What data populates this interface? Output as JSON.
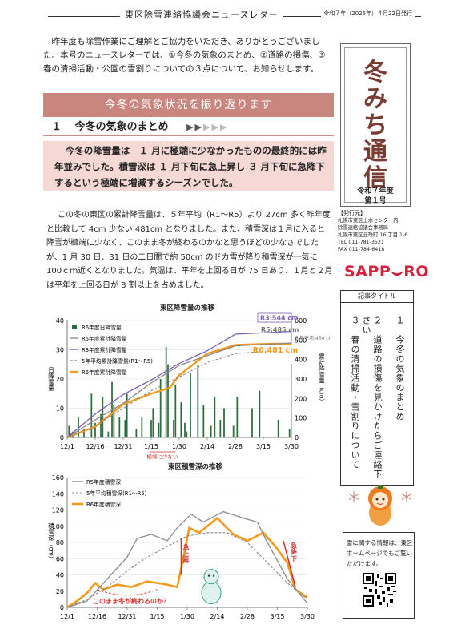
{
  "header": {
    "title": "東区除雪連絡協議会ニュースレター",
    "date": "令和７年（2025年）４月22日発行"
  },
  "intro": "昨年度も除雪作業にご理解とご協力をいただき、ありがとうございました。本号のニュースレターでは、①今冬の気象のまとめ、②道路の損傷、③春の清掃活動・公園の雪割りについての３点について、お知らせします。",
  "section": {
    "banner": "今冬の気象状況を振り返ります",
    "heading_num": "１",
    "heading": "今冬の気象のまとめ",
    "highlight": "今冬の降雪量は　１ 月に極端に少なかったものの最終的には昨年並みでした。積雪深は １ 月下旬に急上昇し ３ 月下旬に急降下するという極端に増減するシーズンでした。",
    "body": "この冬の東区の累計降雪量は、５年平均（R1～R5）より 27cm 多く昨年度と比較して 4cm 少ない 481cm となりました。また、積雪深は１月に入ると降雪が極端に少なく、このまま冬が終わるのかなと思うほどの少なさでしたが、1 月 30 日、31 日の二日間で約 50cm のドカ雪が降り積雪深が一気に 100ｃｍ近くとなりました。気温は、平年を上回る日が 75 日あり、１月と２月は平年を上回る日が 8 割以上を占めました。"
  },
  "sidebar": {
    "title_chars": [
      "冬",
      "み",
      "ち",
      "通",
      "信"
    ],
    "edition_year": "令和７年度",
    "edition_num": "第１号",
    "publisher_head": "【発行元】",
    "publisher_lines": [
      "札幌市東区土木センター内",
      "除雪連絡協議会事務局",
      "札幌市東区丘珠町 16 丁目 1-6",
      "TEL 011-781-3521",
      "FAX 011-784-6418"
    ],
    "city_logo": "SAPP_RO",
    "toc_label": "記事タイトル",
    "toc_items": [
      "１　今冬の気象のまとめ",
      "２　道路の損傷を見かけたらご連絡下さい",
      "３　春の清掃活動・雪割りについて"
    ],
    "info_text": "雪に関する情報は、東区ホームページでもご覧いただけます。"
  },
  "colors": {
    "accent_banner": "#c9867f",
    "highlight_bg": "#f6d8d4",
    "r6": "#f39a1d",
    "r5": "#8a8a8a",
    "r3": "#7b5fb5",
    "bars": "#2e6b3e",
    "callout_red": "#d22f2f",
    "title_brown": "#7a3b33"
  },
  "chart_data": [
    {
      "type": "bar",
      "title": "東区降雪量の推移",
      "x_ticks": [
        "12/1",
        "12/16",
        "12/31",
        "1/15",
        "1/30",
        "2/14",
        "2/28",
        "3/15",
        "3/30"
      ],
      "ylabel_left": "日降雪量",
      "ylabel_right": "累計降雪量（cm）",
      "ylim_left": [
        0,
        40
      ],
      "ylim_right": [
        0,
        600
      ],
      "y_ticks_left": [
        0,
        10,
        20,
        30,
        40
      ],
      "y_ticks_right": [
        0,
        100,
        200,
        300,
        400,
        500,
        600
      ],
      "legend": [
        "R6年度日降雪量",
        "R5年度累計降雪量",
        "R3年度累計降雪量",
        "5年平均累計降雪量(R1～R5)",
        "R6年度累計降雪量"
      ],
      "annotations": {
        "r3": "R3:544 cm",
        "r5": "R5:485 cm",
        "avg": "５年平均:454 cm",
        "r6": "R6:481 cm",
        "low": "極端に少ない"
      },
      "daily": [
        0,
        4,
        0,
        2,
        0,
        0,
        7,
        0,
        0,
        3,
        0,
        0,
        0,
        15,
        0,
        5,
        0,
        0,
        8,
        14,
        0,
        0,
        2,
        0,
        19,
        11,
        0,
        0,
        7,
        0,
        0,
        6,
        15,
        0,
        0,
        0,
        0,
        3,
        0,
        0,
        7,
        0,
        0,
        0,
        0,
        6,
        10,
        0,
        0,
        5,
        20,
        0,
        0,
        31,
        25,
        0,
        0,
        6,
        18,
        0,
        0,
        12,
        0,
        5,
        2,
        0,
        22,
        0,
        0,
        0,
        25,
        0,
        0,
        11,
        0,
        0,
        0,
        4,
        0,
        14,
        0,
        0,
        6,
        0,
        10,
        0,
        0,
        0,
        0,
        4,
        0,
        14,
        0,
        0,
        0,
        0,
        0,
        0,
        0,
        10,
        0,
        0,
        0,
        16,
        0,
        0,
        0,
        0,
        0,
        0,
        0,
        0,
        0,
        6,
        0,
        0,
        0,
        0,
        0,
        3
      ],
      "series": [
        {
          "name": "R6年度累計降雪量",
          "values": [
            [
              0,
              0
            ],
            [
              15,
              55
            ],
            [
              30,
              170
            ],
            [
              45,
              225
            ],
            [
              55,
              255
            ],
            [
              60,
              320
            ],
            [
              75,
              430
            ],
            [
              90,
              475
            ],
            [
              110,
              481
            ],
            [
              120,
              481
            ]
          ]
        },
        {
          "name": "R5年度累計降雪量",
          "values": [
            [
              0,
              0
            ],
            [
              15,
              90
            ],
            [
              30,
              175
            ],
            [
              45,
              280
            ],
            [
              60,
              370
            ],
            [
              75,
              420
            ],
            [
              90,
              470
            ],
            [
              120,
              485
            ]
          ]
        },
        {
          "name": "R3年度累計降雪量",
          "values": [
            [
              0,
              0
            ],
            [
              15,
              120
            ],
            [
              30,
              220
            ],
            [
              45,
              295
            ],
            [
              60,
              380
            ],
            [
              75,
              445
            ],
            [
              90,
              530
            ],
            [
              120,
              544
            ]
          ]
        },
        {
          "name": "5年平均累計降雪量(R1～R5)",
          "values": [
            [
              0,
              0
            ],
            [
              15,
              60
            ],
            [
              30,
              150
            ],
            [
              45,
              240
            ],
            [
              60,
              310
            ],
            [
              75,
              385
            ],
            [
              90,
              430
            ],
            [
              120,
              454
            ]
          ]
        }
      ]
    },
    {
      "type": "line",
      "title": "東区積雪深の推移",
      "x_ticks": [
        "12/1",
        "12/16",
        "12/31",
        "1/15",
        "1/30",
        "2/14",
        "2/28",
        "3/15",
        "3/30"
      ],
      "ylabel": "積雪深（cm）",
      "ylim": [
        0,
        160
      ],
      "y_ticks": [
        0,
        20,
        40,
        60,
        80,
        100,
        120,
        140,
        160
      ],
      "legend": [
        "R5年度積雪深",
        "5年平均積雪深(R1～R5)",
        "R6年度積雪深"
      ],
      "annotations": {
        "surge": "急上昇",
        "drop": "急降下",
        "question": "このまま冬が終わるのか？"
      },
      "series": [
        {
          "name": "R6年度積雪深",
          "values": [
            [
              0,
              0
            ],
            [
              5,
              8
            ],
            [
              10,
              18
            ],
            [
              14,
              30
            ],
            [
              18,
              22
            ],
            [
              25,
              28
            ],
            [
              32,
              25
            ],
            [
              40,
              32
            ],
            [
              45,
              30
            ],
            [
              50,
              28
            ],
            [
              55,
              25
            ],
            [
              58,
              60
            ],
            [
              61,
              98
            ],
            [
              66,
              92
            ],
            [
              75,
              110
            ],
            [
              83,
              90
            ],
            [
              90,
              82
            ],
            [
              98,
              92
            ],
            [
              104,
              75
            ],
            [
              110,
              55
            ],
            [
              114,
              22
            ],
            [
              120,
              12
            ]
          ]
        },
        {
          "name": "R5年度積雪深",
          "values": [
            [
              0,
              0
            ],
            [
              10,
              8
            ],
            [
              20,
              35
            ],
            [
              30,
              62
            ],
            [
              35,
              85
            ],
            [
              42,
              90
            ],
            [
              50,
              82
            ],
            [
              55,
              98
            ],
            [
              62,
              115
            ],
            [
              68,
              105
            ],
            [
              78,
              118
            ],
            [
              88,
              110
            ],
            [
              95,
              105
            ],
            [
              100,
              80
            ],
            [
              110,
              35
            ],
            [
              120,
              5
            ]
          ]
        },
        {
          "name": "5年平均積雪深(R1～R5)",
          "values": [
            [
              0,
              0
            ],
            [
              10,
              10
            ],
            [
              20,
              25
            ],
            [
              30,
              45
            ],
            [
              40,
              62
            ],
            [
              50,
              75
            ],
            [
              60,
              88
            ],
            [
              70,
              92
            ],
            [
              80,
              92
            ],
            [
              90,
              80
            ],
            [
              100,
              55
            ],
            [
              110,
              30
            ],
            [
              120,
              10
            ]
          ]
        }
      ]
    }
  ]
}
